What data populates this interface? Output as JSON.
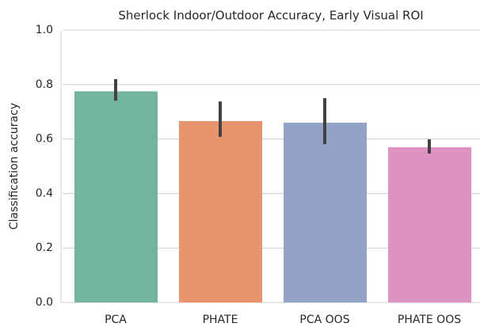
{
  "chart_data": {
    "type": "bar",
    "title": "Sherlock Indoor/Outdoor Accuracy, Early Visual ROI",
    "y_label": "Classification accuracy",
    "categories": [
      "PCA",
      "PHATE",
      "PCA OOS",
      "PHATE OOS"
    ],
    "values": [
      0.775,
      0.666,
      0.66,
      0.57
    ],
    "ci_low": [
      0.741,
      0.608,
      0.581,
      0.547
    ],
    "ci_high": [
      0.82,
      0.738,
      0.75,
      0.599
    ],
    "colors": [
      "#72b59c",
      "#e8956d",
      "#93a3c6",
      "#dc93c1"
    ],
    "error_color": "#424242",
    "ylim": [
      0,
      1
    ],
    "yticks": [
      {
        "value": 0,
        "label": "0.0"
      },
      {
        "value": 0.2,
        "label": "0.2"
      },
      {
        "value": 0.4,
        "label": "0.4"
      },
      {
        "value": 0.6,
        "label": "0.6"
      },
      {
        "value": 0.8,
        "label": "0.8"
      },
      {
        "value": 1,
        "label": "1.0"
      }
    ],
    "grid": true
  }
}
